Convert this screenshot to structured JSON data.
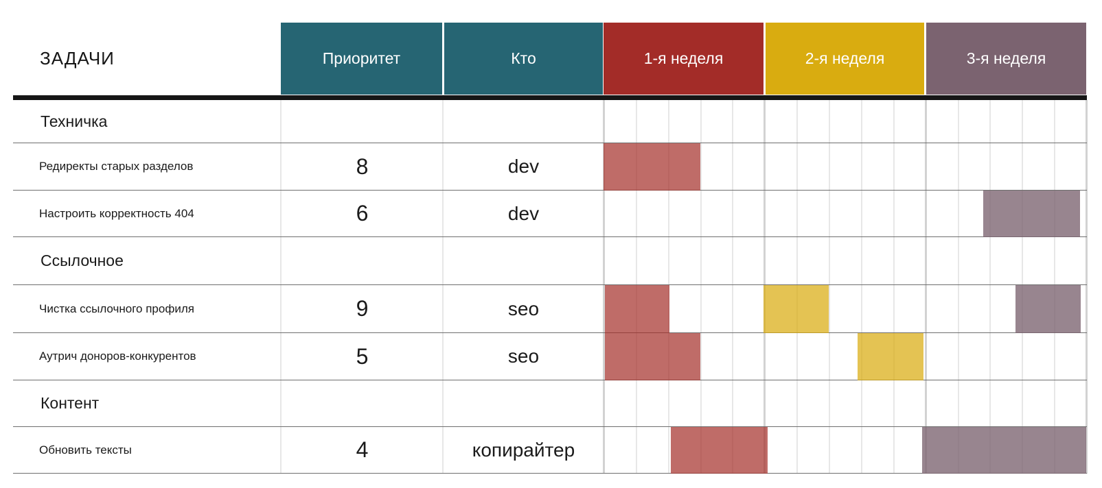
{
  "title": "ЗАДАЧИ",
  "columns": {
    "priority": "Приоритет",
    "who": "Кто"
  },
  "weeks": [
    {
      "label": "1-я неделя",
      "color": "#A32C28"
    },
    {
      "label": "2-я неделя",
      "color": "#D9AC10"
    },
    {
      "label": "3-я неделя",
      "color": "#7B6370"
    }
  ],
  "colors": {
    "teal_header": "#266573",
    "header_text": "#ffffff",
    "bar_red": "rgba(164,45,40,0.70)",
    "bar_yellow": "rgba(217,172,16,0.72)",
    "bar_purple": "rgba(123,99,112,0.78)",
    "grid_day_line": "#e7e7e7",
    "grid_week_line": "#d2d2d2",
    "row_line": "#6e6e6e",
    "header_divider": "#161616",
    "text": "#1a1a1a"
  },
  "chart_data": {
    "type": "gantt",
    "title": "ЗАДАЧИ",
    "weeks": [
      "1-я неделя",
      "2-я неделя",
      "3-я неделя"
    ],
    "days_per_week": 5,
    "total_days": 15,
    "rows": [
      {
        "kind": "section",
        "name": "Техничка"
      },
      {
        "kind": "task",
        "name": "Редиректы старых разделов",
        "priority": "8",
        "who": "dev",
        "bars": [
          {
            "color": "red",
            "start_day": 0,
            "duration_days": 3.0
          }
        ]
      },
      {
        "kind": "task",
        "name": "Настроить корректность 404",
        "priority": "6",
        "who": "dev",
        "bars": [
          {
            "color": "purple",
            "start_day": 11.8,
            "duration_days": 3.0
          }
        ]
      },
      {
        "kind": "section",
        "name": "Ссылочное"
      },
      {
        "kind": "task",
        "name": "Чистка ссылочного профиля",
        "priority": "9",
        "who": "seo",
        "bars": [
          {
            "color": "red",
            "start_day": 0.05,
            "duration_days": 2.0
          },
          {
            "color": "yellow",
            "start_day": 4.97,
            "duration_days": 2.03
          },
          {
            "color": "purple",
            "start_day": 12.8,
            "duration_days": 2.03
          }
        ]
      },
      {
        "kind": "task",
        "name": "Аутрич доноров-конкурентов",
        "priority": "5",
        "who": "seo",
        "bars": [
          {
            "color": "red",
            "start_day": 0.05,
            "duration_days": 2.95
          },
          {
            "color": "yellow",
            "start_day": 7.9,
            "duration_days": 2.05
          }
        ]
      },
      {
        "kind": "section",
        "name": "Контент"
      },
      {
        "kind": "task",
        "name": "Обновить тексты",
        "priority": "4",
        "who": "копирайтер",
        "bars": [
          {
            "color": "red",
            "start_day": 2.1,
            "duration_days": 3.0
          },
          {
            "color": "purple",
            "start_day": 9.9,
            "duration_days": 5.1
          }
        ]
      }
    ]
  }
}
